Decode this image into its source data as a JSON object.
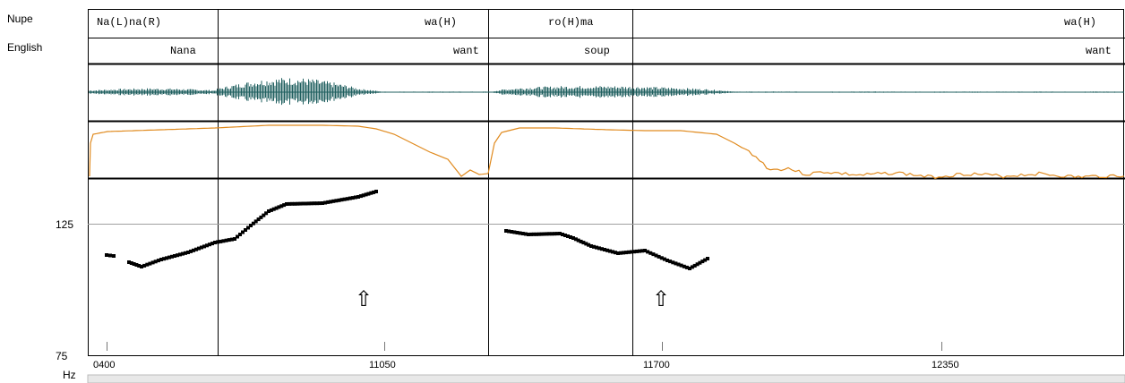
{
  "tiers": {
    "nupe_label": "Nupe",
    "english_label": "English",
    "nupe_cells": [
      "Na(L)na(R)",
      "wa(H)",
      "ro(H)ma",
      "wa(H)"
    ],
    "english_cells": [
      "Nana",
      "want",
      "soup",
      "want"
    ]
  },
  "pitch_axis": {
    "upper_label": "125",
    "lower_label": "75",
    "unit": "Hz"
  },
  "time_axis": {
    "ticks": [
      "0400",
      "11050",
      "11700",
      "12350"
    ]
  },
  "arrows": [
    "⇧",
    "⇧"
  ],
  "colors": {
    "waveform": "#1f5f5f",
    "intensity": "#e08a1e",
    "pitch": "#000000",
    "reference_line": "#a0a0a0",
    "grid": "#000000"
  }
}
